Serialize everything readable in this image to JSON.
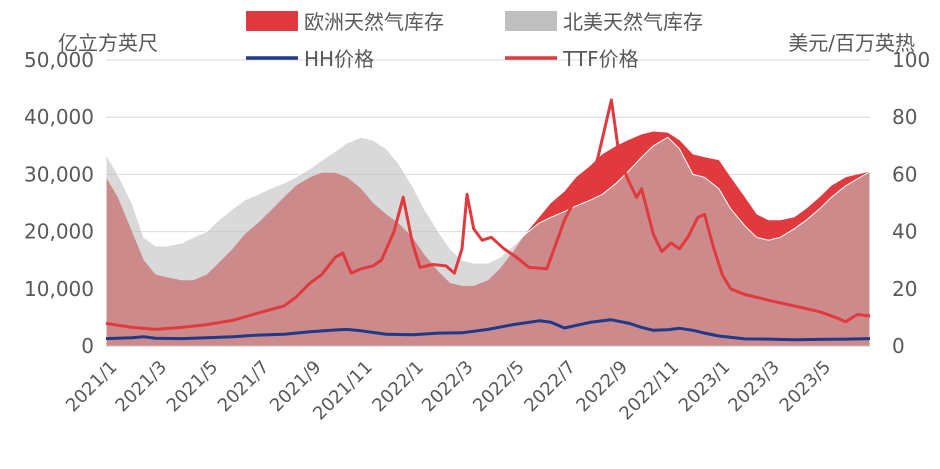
{
  "chart_data": {
    "type": "area",
    "title": "",
    "y_left_label": "亿立方英尺",
    "y_right_label": "美元/百万英热",
    "y_left_range": [
      0,
      50000
    ],
    "y_right_range": [
      0,
      100
    ],
    "y_left_ticks": [
      "0",
      "10,000",
      "20,000",
      "30,000",
      "40,000",
      "50,000"
    ],
    "y_right_ticks": [
      "0",
      "20",
      "40",
      "60",
      "80",
      "100"
    ],
    "x_ticks": [
      "2021/1",
      "2021/3",
      "2021/5",
      "2021/7",
      "2021/9",
      "2021/11",
      "2022/1",
      "2022/3",
      "2022/5",
      "2022/7",
      "2022/9",
      "2022/11",
      "2023/1",
      "2023/3",
      "2023/5"
    ],
    "x_range": [
      "2021-01-01",
      "2023-06-30"
    ],
    "grid": "horizontal",
    "legend_position": "top",
    "series": [
      {
        "name": "欧洲天然气库存",
        "kind": "area",
        "axis": "left",
        "color": "#e03a3e",
        "points": [
          [
            "2021-01-01",
            29500
          ],
          [
            "2021-01-15",
            26000
          ],
          [
            "2021-02-01",
            20000
          ],
          [
            "2021-02-15",
            15000
          ],
          [
            "2021-03-01",
            12500
          ],
          [
            "2021-03-15",
            12000
          ],
          [
            "2021-04-01",
            11500
          ],
          [
            "2021-04-15",
            11500
          ],
          [
            "2021-05-01",
            12500
          ],
          [
            "2021-05-15",
            14500
          ],
          [
            "2021-06-01",
            17000
          ],
          [
            "2021-06-15",
            19500
          ],
          [
            "2021-07-01",
            21500
          ],
          [
            "2021-07-15",
            23500
          ],
          [
            "2021-08-01",
            26000
          ],
          [
            "2021-08-15",
            28000
          ],
          [
            "2021-09-01",
            29500
          ],
          [
            "2021-09-15",
            30300
          ],
          [
            "2021-10-01",
            30300
          ],
          [
            "2021-10-15",
            29500
          ],
          [
            "2021-11-01",
            27500
          ],
          [
            "2021-11-15",
            25000
          ],
          [
            "2021-12-01",
            23000
          ],
          [
            "2021-12-15",
            21500
          ],
          [
            "2022-01-01",
            19000
          ],
          [
            "2022-01-15",
            16000
          ],
          [
            "2022-02-01",
            13000
          ],
          [
            "2022-02-15",
            11000
          ],
          [
            "2022-03-01",
            10500
          ],
          [
            "2022-03-15",
            10500
          ],
          [
            "2022-04-01",
            11500
          ],
          [
            "2022-04-15",
            13500
          ],
          [
            "2022-05-01",
            16500
          ],
          [
            "2022-05-15",
            19500
          ],
          [
            "2022-06-01",
            22500
          ],
          [
            "2022-06-15",
            25000
          ],
          [
            "2022-07-01",
            27000
          ],
          [
            "2022-07-15",
            29500
          ],
          [
            "2022-08-01",
            31500
          ],
          [
            "2022-08-15",
            33500
          ],
          [
            "2022-09-01",
            35000
          ],
          [
            "2022-09-15",
            36000
          ],
          [
            "2022-10-01",
            37000
          ],
          [
            "2022-10-15",
            37500
          ],
          [
            "2022-11-01",
            37300
          ],
          [
            "2022-11-15",
            36000
          ],
          [
            "2022-12-01",
            33500
          ],
          [
            "2022-12-15",
            33000
          ],
          [
            "2023-01-01",
            32500
          ],
          [
            "2023-01-15",
            29500
          ],
          [
            "2023-02-01",
            26000
          ],
          [
            "2023-02-15",
            23000
          ],
          [
            "2023-03-01",
            22000
          ],
          [
            "2023-03-15",
            22000
          ],
          [
            "2023-04-01",
            22500
          ],
          [
            "2023-04-15",
            24000
          ],
          [
            "2023-05-01",
            26000
          ],
          [
            "2023-05-15",
            28000
          ],
          [
            "2023-06-01",
            29500
          ],
          [
            "2023-06-30",
            30500
          ]
        ]
      },
      {
        "name": "北美天然气库存",
        "kind": "area",
        "axis": "left",
        "color": "#bfbfbf",
        "points": [
          [
            "2021-01-01",
            33500
          ],
          [
            "2021-01-15",
            30000
          ],
          [
            "2021-02-01",
            25000
          ],
          [
            "2021-02-15",
            19000
          ],
          [
            "2021-03-01",
            17500
          ],
          [
            "2021-03-15",
            17500
          ],
          [
            "2021-04-01",
            18000
          ],
          [
            "2021-04-15",
            19000
          ],
          [
            "2021-05-01",
            20000
          ],
          [
            "2021-05-15",
            22000
          ],
          [
            "2021-06-01",
            24000
          ],
          [
            "2021-06-15",
            25500
          ],
          [
            "2021-07-01",
            26500
          ],
          [
            "2021-07-15",
            27500
          ],
          [
            "2021-08-01",
            28500
          ],
          [
            "2021-08-15",
            29500
          ],
          [
            "2021-09-01",
            31000
          ],
          [
            "2021-09-15",
            32500
          ],
          [
            "2021-10-01",
            34000
          ],
          [
            "2021-10-15",
            35500
          ],
          [
            "2021-11-01",
            36500
          ],
          [
            "2021-11-15",
            36000
          ],
          [
            "2021-12-01",
            34500
          ],
          [
            "2021-12-15",
            32000
          ],
          [
            "2022-01-01",
            28000
          ],
          [
            "2022-01-15",
            24000
          ],
          [
            "2022-02-01",
            20000
          ],
          [
            "2022-02-15",
            17000
          ],
          [
            "2022-03-01",
            15000
          ],
          [
            "2022-03-15",
            14500
          ],
          [
            "2022-04-01",
            14500
          ],
          [
            "2022-04-15",
            15500
          ],
          [
            "2022-05-01",
            17500
          ],
          [
            "2022-05-15",
            19500
          ],
          [
            "2022-06-01",
            21500
          ],
          [
            "2022-06-15",
            22500
          ],
          [
            "2022-07-01",
            23500
          ],
          [
            "2022-07-15",
            24500
          ],
          [
            "2022-08-01",
            25500
          ],
          [
            "2022-08-15",
            26500
          ],
          [
            "2022-09-01",
            28500
          ],
          [
            "2022-09-15",
            30500
          ],
          [
            "2022-10-01",
            33000
          ],
          [
            "2022-10-15",
            35000
          ],
          [
            "2022-11-01",
            36500
          ],
          [
            "2022-11-15",
            34500
          ],
          [
            "2022-12-01",
            30000
          ],
          [
            "2022-12-15",
            29500
          ],
          [
            "2023-01-01",
            27500
          ],
          [
            "2023-01-15",
            24000
          ],
          [
            "2023-02-01",
            21000
          ],
          [
            "2023-02-15",
            19000
          ],
          [
            "2023-03-01",
            18500
          ],
          [
            "2023-03-15",
            19000
          ],
          [
            "2023-04-01",
            20500
          ],
          [
            "2023-04-15",
            22000
          ],
          [
            "2023-05-01",
            24000
          ],
          [
            "2023-05-15",
            26000
          ],
          [
            "2023-06-01",
            28000
          ],
          [
            "2023-06-30",
            30500
          ]
        ]
      },
      {
        "name": "HH价格",
        "kind": "line",
        "axis": "right",
        "color": "#1f3a8a",
        "points": [
          [
            "2021-01-01",
            2.6
          ],
          [
            "2021-02-01",
            2.9
          ],
          [
            "2021-02-15",
            3.2
          ],
          [
            "2021-03-01",
            2.7
          ],
          [
            "2021-04-01",
            2.6
          ],
          [
            "2021-05-01",
            2.9
          ],
          [
            "2021-06-01",
            3.2
          ],
          [
            "2021-07-01",
            3.8
          ],
          [
            "2021-08-01",
            4.1
          ],
          [
            "2021-09-01",
            5.0
          ],
          [
            "2021-10-01",
            5.6
          ],
          [
            "2021-10-15",
            5.8
          ],
          [
            "2021-11-01",
            5.3
          ],
          [
            "2021-12-01",
            4.1
          ],
          [
            "2022-01-01",
            3.9
          ],
          [
            "2022-02-01",
            4.5
          ],
          [
            "2022-03-01",
            4.6
          ],
          [
            "2022-04-01",
            5.8
          ],
          [
            "2022-05-01",
            7.5
          ],
          [
            "2022-06-01",
            8.8
          ],
          [
            "2022-06-15",
            8.3
          ],
          [
            "2022-07-01",
            6.3
          ],
          [
            "2022-08-01",
            8.3
          ],
          [
            "2022-08-25",
            9.2
          ],
          [
            "2022-09-15",
            8.0
          ],
          [
            "2022-10-01",
            6.5
          ],
          [
            "2022-10-15",
            5.5
          ],
          [
            "2022-11-01",
            5.7
          ],
          [
            "2022-11-15",
            6.2
          ],
          [
            "2022-12-01",
            5.5
          ],
          [
            "2022-12-15",
            4.5
          ],
          [
            "2023-01-01",
            3.5
          ],
          [
            "2023-02-01",
            2.5
          ],
          [
            "2023-03-01",
            2.4
          ],
          [
            "2023-04-01",
            2.2
          ],
          [
            "2023-05-01",
            2.3
          ],
          [
            "2023-06-01",
            2.4
          ],
          [
            "2023-06-30",
            2.6
          ]
        ]
      },
      {
        "name": "TTF价格",
        "kind": "line",
        "axis": "right",
        "color": "#e03a3e",
        "points": [
          [
            "2021-01-01",
            7.9
          ],
          [
            "2021-02-01",
            6.5
          ],
          [
            "2021-03-01",
            5.8
          ],
          [
            "2021-04-01",
            6.5
          ],
          [
            "2021-05-01",
            7.5
          ],
          [
            "2021-06-01",
            9.0
          ],
          [
            "2021-07-01",
            11.5
          ],
          [
            "2021-08-01",
            14.0
          ],
          [
            "2021-08-15",
            17.0
          ],
          [
            "2021-09-01",
            22.0
          ],
          [
            "2021-09-15",
            25.0
          ],
          [
            "2021-10-01",
            31.0
          ],
          [
            "2021-10-10",
            32.5
          ],
          [
            "2021-10-20",
            25.5
          ],
          [
            "2021-11-01",
            27.0
          ],
          [
            "2021-11-15",
            28.0
          ],
          [
            "2021-11-25",
            30.0
          ],
          [
            "2021-12-10",
            40.0
          ],
          [
            "2021-12-21",
            52.0
          ],
          [
            "2022-01-01",
            36.0
          ],
          [
            "2022-01-10",
            27.5
          ],
          [
            "2022-01-25",
            28.5
          ],
          [
            "2022-02-10",
            28.0
          ],
          [
            "2022-02-20",
            25.5
          ],
          [
            "2022-03-01",
            34.0
          ],
          [
            "2022-03-07",
            53.0
          ],
          [
            "2022-03-15",
            41.0
          ],
          [
            "2022-03-25",
            37.0
          ],
          [
            "2022-04-05",
            38.0
          ],
          [
            "2022-04-20",
            34.0
          ],
          [
            "2022-05-05",
            31.0
          ],
          [
            "2022-05-20",
            27.5
          ],
          [
            "2022-06-10",
            27.0
          ],
          [
            "2022-06-20",
            35.0
          ],
          [
            "2022-07-01",
            44.0
          ],
          [
            "2022-07-15",
            52.0
          ],
          [
            "2022-08-01",
            58.0
          ],
          [
            "2022-08-10",
            66.0
          ],
          [
            "2022-08-26",
            86.0
          ],
          [
            "2022-09-05",
            65.0
          ],
          [
            "2022-09-15",
            58.0
          ],
          [
            "2022-09-25",
            52.0
          ],
          [
            "2022-10-01",
            55.0
          ],
          [
            "2022-10-15",
            39.0
          ],
          [
            "2022-10-25",
            33.0
          ],
          [
            "2022-11-05",
            36.0
          ],
          [
            "2022-11-15",
            34.0
          ],
          [
            "2022-11-25",
            38.0
          ],
          [
            "2022-12-07",
            45.0
          ],
          [
            "2022-12-15",
            46.0
          ],
          [
            "2022-12-25",
            35.0
          ],
          [
            "2023-01-05",
            25.0
          ],
          [
            "2023-01-15",
            20.0
          ],
          [
            "2023-02-01",
            18.0
          ],
          [
            "2023-03-01",
            16.0
          ],
          [
            "2023-04-01",
            14.0
          ],
          [
            "2023-05-01",
            12.0
          ],
          [
            "2023-05-20",
            10.0
          ],
          [
            "2023-06-01",
            8.5
          ],
          [
            "2023-06-15",
            11.0
          ],
          [
            "2023-06-30",
            10.5
          ]
        ]
      }
    ]
  }
}
